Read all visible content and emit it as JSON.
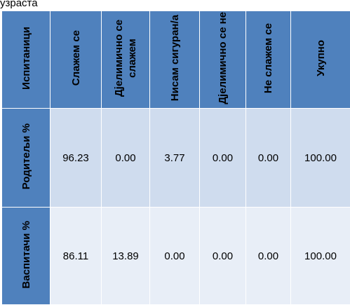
{
  "caption": "узраста",
  "table": {
    "headers": [
      "Испитаници",
      "Слажем се",
      "Дјелимично се слажем",
      "Нисам сигуран/а",
      "Дјелимично се не",
      "Не слажем се",
      "Укупно"
    ],
    "rows": [
      {
        "label": "Родитељи %",
        "values": [
          "96.23",
          "0.00",
          "3.77",
          "0.00",
          "0.00",
          "100.00"
        ]
      },
      {
        "label": "Васпитачи %",
        "values": [
          "86.11",
          "13.89",
          "0.00",
          "0.00",
          "0.00",
          "100.00"
        ]
      }
    ]
  },
  "colors": {
    "header_fill": "#4f81bd",
    "row_parents_fill": "#cfdcee",
    "row_teachers_fill": "#e8eef7"
  }
}
